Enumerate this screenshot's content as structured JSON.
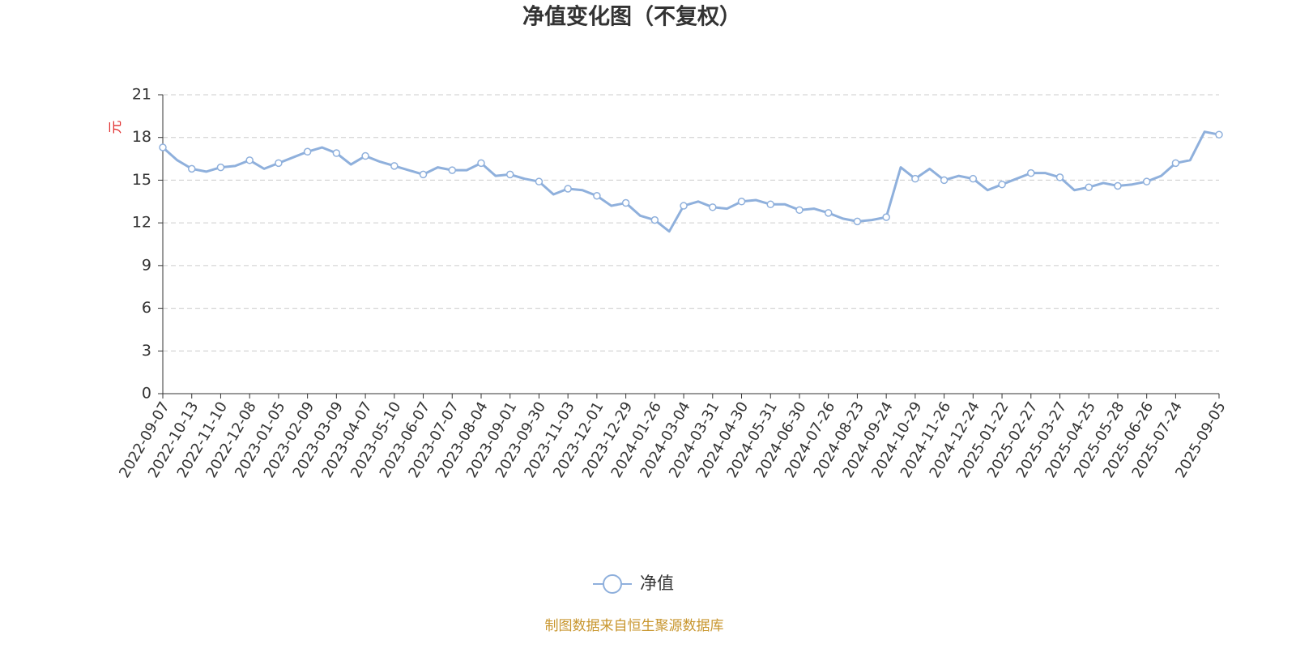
{
  "chart_data": {
    "type": "line",
    "title": "净值变化图（不复权）",
    "y_label": "元",
    "categories": [
      "2022-09-07",
      null,
      "2022-10-13",
      null,
      "2022-11-10",
      null,
      "2022-12-08",
      null,
      "2023-01-05",
      null,
      "2023-02-09",
      null,
      "2023-03-09",
      null,
      "2023-04-07",
      null,
      "2023-05-10",
      null,
      "2023-06-07",
      null,
      "2023-07-07",
      null,
      "2023-08-04",
      null,
      "2023-09-01",
      null,
      "2023-09-30",
      null,
      "2023-11-03",
      null,
      "2023-12-01",
      null,
      "2023-12-29",
      null,
      "2024-01-26",
      null,
      "2024-03-04",
      null,
      "2024-03-31",
      null,
      "2024-04-30",
      null,
      "2024-05-31",
      null,
      "2024-06-30",
      null,
      "2024-07-26",
      null,
      "2024-08-23",
      null,
      "2024-09-24",
      null,
      "2024-10-29",
      null,
      "2024-11-26",
      null,
      "2024-12-24",
      null,
      "2025-01-22",
      null,
      "2025-02-27",
      null,
      "2025-03-27",
      null,
      "2025-04-25",
      null,
      "2025-05-28",
      null,
      "2025-06-26",
      null,
      "2025-07-24",
      null,
      null,
      "2025-09-05"
    ],
    "series": [
      {
        "name": "净值",
        "color": "#8fb0dc",
        "values": [
          17.3,
          16.4,
          15.8,
          15.6,
          15.9,
          16.0,
          16.4,
          15.8,
          16.2,
          16.6,
          17.0,
          17.3,
          16.9,
          16.1,
          16.7,
          16.3,
          16.0,
          15.7,
          15.4,
          15.9,
          15.7,
          15.7,
          16.2,
          15.3,
          15.4,
          15.1,
          14.9,
          14.0,
          14.4,
          14.3,
          13.9,
          13.2,
          13.4,
          12.5,
          12.2,
          11.4,
          13.2,
          13.5,
          13.1,
          13.0,
          13.5,
          13.6,
          13.3,
          13.3,
          12.9,
          13.0,
          12.7,
          12.3,
          12.1,
          12.2,
          12.4,
          15.9,
          15.1,
          15.8,
          15.0,
          15.3,
          15.1,
          14.3,
          14.7,
          15.1,
          15.5,
          15.5,
          15.2,
          14.3,
          14.5,
          14.8,
          14.6,
          14.7,
          14.9,
          15.3,
          16.2,
          16.4,
          18.4,
          18.2
        ]
      }
    ],
    "ylim": [
      0,
      21
    ],
    "yticks": [
      0,
      3,
      6,
      9,
      12,
      15,
      18,
      21
    ],
    "grid": true,
    "footnote": "制图数据来自恒生聚源数据库"
  }
}
